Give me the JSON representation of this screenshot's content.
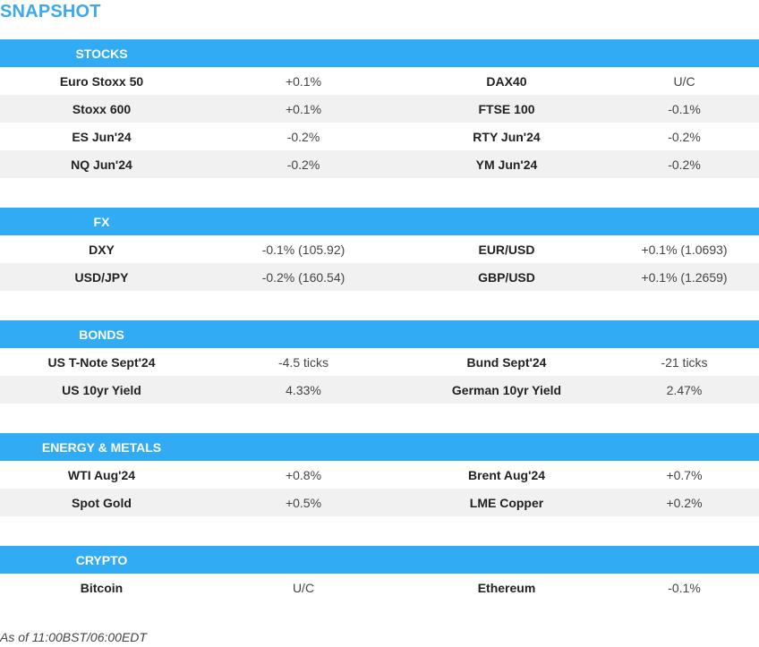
{
  "title": "SNAPSHOT",
  "sections": [
    {
      "id": "stocks",
      "header": "STOCKS",
      "rows": [
        [
          "Euro Stoxx 50",
          "+0.1%",
          "DAX40",
          "U/C"
        ],
        [
          "Stoxx 600",
          "+0.1%",
          "FTSE 100",
          "-0.1%"
        ],
        [
          "ES Jun'24",
          "-0.2%",
          "RTY Jun'24",
          "-0.2%"
        ],
        [
          "NQ Jun'24",
          "-0.2%",
          "YM Jun'24",
          "-0.2%"
        ]
      ]
    },
    {
      "id": "fx",
      "header": "FX",
      "rows": [
        [
          "DXY",
          "-0.1% (105.92)",
          "EUR/USD",
          "+0.1% (1.0693)"
        ],
        [
          "USD/JPY",
          "-0.2% (160.54)",
          "GBP/USD",
          "+0.1% (1.2659)"
        ]
      ]
    },
    {
      "id": "bonds",
      "header": "BONDS",
      "rows": [
        [
          "US T-Note Sept'24",
          "-4.5 ticks",
          "Bund Sept'24",
          "-21 ticks"
        ],
        [
          "US 10yr Yield",
          "4.33%",
          "German 10yr Yield",
          "2.47%"
        ]
      ]
    },
    {
      "id": "energy-metals",
      "header": "ENERGY & METALS",
      "rows": [
        [
          "WTI Aug'24",
          "+0.8%",
          "Brent Aug'24",
          "+0.7%"
        ],
        [
          "Spot Gold",
          "+0.5%",
          "LME Copper",
          "+0.2%"
        ]
      ]
    },
    {
      "id": "crypto",
      "header": "CRYPTO",
      "rows": [
        [
          "Bitcoin",
          "U/C",
          "Ethereum",
          "-0.1%"
        ]
      ]
    }
  ],
  "footer": "As of 11:00BST/06:00EDT",
  "colors": {
    "title": "#3aa9ee",
    "header_bg": "#31acf4",
    "row_alt_bg": "#f1f1f1"
  }
}
